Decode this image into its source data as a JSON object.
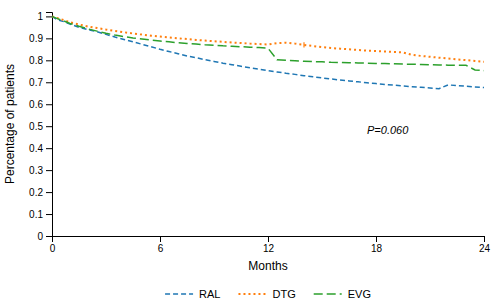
{
  "chart_data": {
    "type": "line",
    "xlabel": "Months",
    "ylabel": "Percentage of patients",
    "x": [
      0,
      0.3,
      0.7,
      1.0,
      1.5,
      2.0,
      2.5,
      3.0,
      3.5,
      4.0,
      4.5,
      5.0,
      5.5,
      6.0,
      6.5,
      7.0,
      7.5,
      8.0,
      8.5,
      9.0,
      9.5,
      10.0,
      10.5,
      11.0,
      11.5,
      12.0,
      12.5,
      13.0,
      13.5,
      14.0,
      14.5,
      15.0,
      15.5,
      16.0,
      16.5,
      17.0,
      17.5,
      18.0,
      18.5,
      19.0,
      19.5,
      20.0,
      20.5,
      21.0,
      21.5,
      22.0,
      22.5,
      23.0,
      23.5,
      24.0
    ],
    "series": [
      {
        "name": "RAL",
        "line_style": "dashed",
        "values": [
          1.0,
          0.985,
          0.975,
          0.965,
          0.95,
          0.94,
          0.93,
          0.918,
          0.906,
          0.895,
          0.884,
          0.873,
          0.862,
          0.85,
          0.84,
          0.83,
          0.82,
          0.812,
          0.803,
          0.795,
          0.787,
          0.78,
          0.773,
          0.766,
          0.76,
          0.753,
          0.747,
          0.741,
          0.736,
          0.73,
          0.725,
          0.72,
          0.715,
          0.71,
          0.706,
          0.702,
          0.698,
          0.694,
          0.69,
          0.687,
          0.683,
          0.68,
          0.677,
          0.674,
          0.671,
          0.688,
          0.685,
          0.682,
          0.679,
          0.676
        ]
      },
      {
        "name": "DTG",
        "line_style": "dotted",
        "values": [
          1.0,
          0.992,
          0.982,
          0.973,
          0.963,
          0.954,
          0.947,
          0.94,
          0.934,
          0.928,
          0.922,
          0.917,
          0.912,
          0.908,
          0.904,
          0.9,
          0.897,
          0.893,
          0.89,
          0.887,
          0.884,
          0.881,
          0.879,
          0.876,
          0.874,
          0.872,
          0.878,
          0.88,
          0.876,
          0.87,
          0.865,
          0.86,
          0.856,
          0.853,
          0.85,
          0.847,
          0.844,
          0.842,
          0.84,
          0.838,
          0.836,
          0.825,
          0.82,
          0.816,
          0.812,
          0.808,
          0.804,
          0.801,
          0.797,
          0.793
        ]
      },
      {
        "name": "EVG",
        "line_style": "longdash",
        "values": [
          1.0,
          0.99,
          0.978,
          0.968,
          0.955,
          0.943,
          0.933,
          0.923,
          0.915,
          0.908,
          0.902,
          0.897,
          0.892,
          0.888,
          0.884,
          0.88,
          0.877,
          0.874,
          0.871,
          0.869,
          0.866,
          0.864,
          0.862,
          0.86,
          0.858,
          0.855,
          0.803,
          0.8,
          0.798,
          0.796,
          0.794,
          0.793,
          0.791,
          0.79,
          0.789,
          0.788,
          0.787,
          0.786,
          0.785,
          0.784,
          0.783,
          0.782,
          0.781,
          0.78,
          0.779,
          0.778,
          0.778,
          0.777,
          0.756,
          0.753
        ]
      }
    ],
    "censor": {
      "series": "DTG",
      "x": 14.0,
      "low": 0.858,
      "high": 0.882
    },
    "annotations": [
      {
        "text": "P=0.060",
        "x": 17.5,
        "y": 0.48
      }
    ],
    "xlim": [
      0,
      24
    ],
    "ylim": [
      0,
      1.02
    ],
    "xticks": [
      0,
      6,
      12,
      18,
      24
    ],
    "yticks": [
      0,
      0.1,
      0.2,
      0.3,
      0.4,
      0.5,
      0.6,
      0.7,
      0.8,
      0.9,
      1
    ],
    "grid": false,
    "legend": "bottom"
  }
}
